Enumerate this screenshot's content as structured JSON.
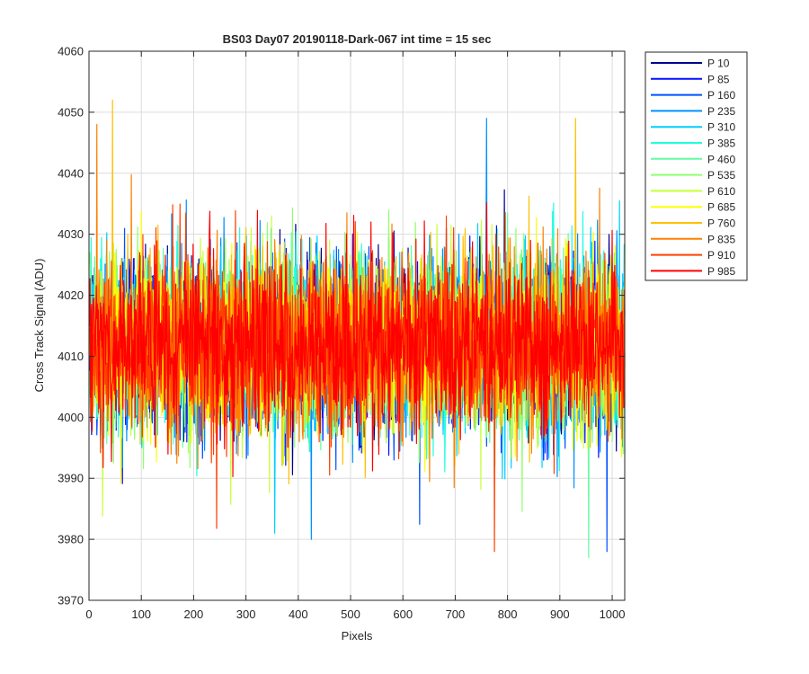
{
  "chart_data": {
    "type": "line",
    "title": "BS03 Day07 20190118-Dark-067 int time = 15 sec",
    "xlabel": "Pixels",
    "ylabel": "Cross Track Signal (ADU)",
    "xlim": [
      0,
      1024
    ],
    "ylim": [
      3970,
      4060
    ],
    "xticks": [
      0,
      100,
      200,
      300,
      400,
      500,
      600,
      700,
      800,
      900,
      1000
    ],
    "yticks": [
      3970,
      3980,
      3990,
      4000,
      4010,
      4020,
      4030,
      4040,
      4050,
      4060
    ],
    "grid": true,
    "legend_position": "outside-top-right",
    "x": {
      "start": 1,
      "end": 1024,
      "step": 1
    },
    "noise_model": {
      "mean": 4012,
      "std": 7,
      "seed": 20190118
    },
    "series": [
      {
        "name": "P 10",
        "color": "#00008f"
      },
      {
        "name": "P 85",
        "color": "#0010ff"
      },
      {
        "name": "P 160",
        "color": "#0050ff"
      },
      {
        "name": "P 235",
        "color": "#0090ff"
      },
      {
        "name": "P 310",
        "color": "#00cfff"
      },
      {
        "name": "P 385",
        "color": "#20ffdf"
      },
      {
        "name": "P 460",
        "color": "#60ff9f"
      },
      {
        "name": "P 535",
        "color": "#90ff70"
      },
      {
        "name": "P 610",
        "color": "#c8ff38"
      },
      {
        "name": "P 685",
        "color": "#ffff00"
      },
      {
        "name": "P 760",
        "color": "#ffc000"
      },
      {
        "name": "P 835",
        "color": "#ff8000"
      },
      {
        "name": "P 910",
        "color": "#ff4000"
      },
      {
        "name": "P 985",
        "color": "#ff0000"
      }
    ],
    "notable_points": [
      {
        "series": "P 760",
        "x": 45,
        "y": 4052
      },
      {
        "series": "P 835",
        "x": 15,
        "y": 4048
      },
      {
        "series": "P 235",
        "x": 760,
        "y": 4049
      },
      {
        "series": "P 760",
        "x": 930,
        "y": 4049
      },
      {
        "series": "P 910",
        "x": 775,
        "y": 3978
      },
      {
        "series": "P 460",
        "x": 955,
        "y": 3977
      },
      {
        "series": "P 160",
        "x": 990,
        "y": 3978
      },
      {
        "series": "P 310",
        "x": 355,
        "y": 3981
      },
      {
        "series": "P 235",
        "x": 425,
        "y": 3980
      }
    ]
  }
}
